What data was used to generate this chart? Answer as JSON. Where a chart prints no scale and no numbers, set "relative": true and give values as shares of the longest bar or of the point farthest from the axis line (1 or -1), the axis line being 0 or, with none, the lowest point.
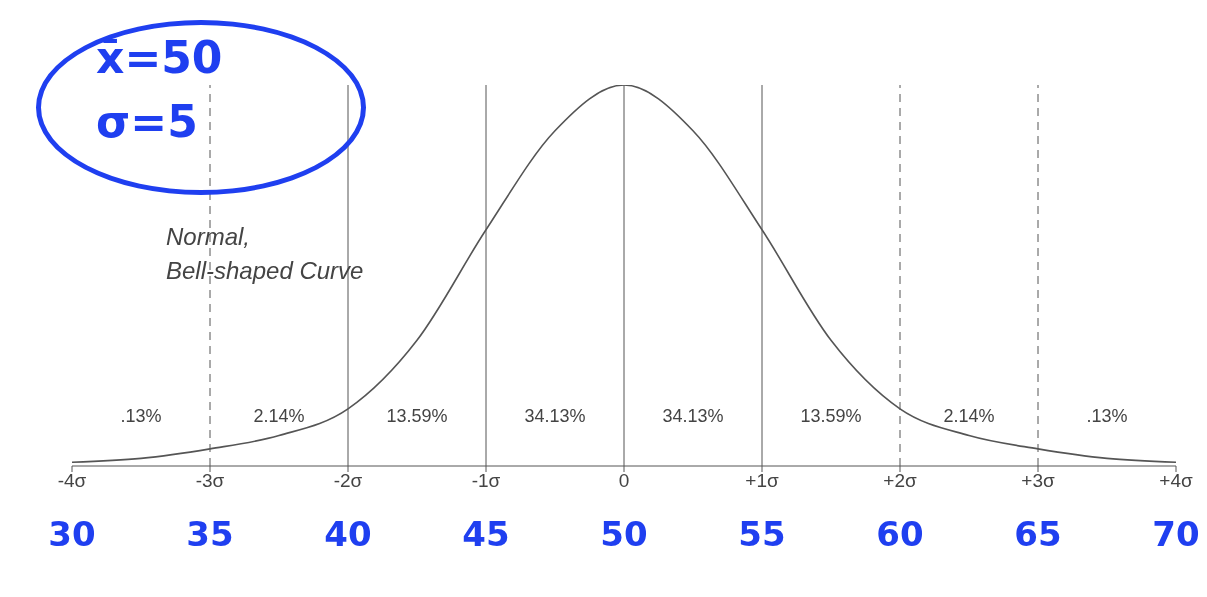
{
  "chart_data": {
    "type": "line",
    "relative": true,
    "x": [
      -4,
      -3.5,
      -3,
      -2.5,
      -2,
      -1.5,
      -1,
      -0.5,
      0,
      0.5,
      1,
      1.5,
      2,
      2.5,
      3,
      3.5,
      4
    ],
    "series": [
      {
        "color": "#555555",
        "values": [
          0.01,
          0.02,
          0.045,
          0.08,
          0.15,
          0.33,
          0.62,
          0.88,
          1,
          0.88,
          0.62,
          0.33,
          0.15,
          0.08,
          0.045,
          0.02,
          0.01
        ]
      }
    ],
    "xlim": [
      -4,
      4
    ],
    "xticks": [
      {
        "value": -4,
        "label": "-4σ"
      },
      {
        "value": -3,
        "label": "-3σ"
      },
      {
        "value": -2,
        "label": "-2σ"
      },
      {
        "value": -1,
        "label": "-1σ"
      },
      0,
      {
        "value": 1,
        "label": "+1σ"
      },
      {
        "value": 2,
        "label": "+2σ"
      },
      {
        "value": 3,
        "label": "+3σ"
      },
      {
        "value": 4,
        "label": "+4σ"
      }
    ],
    "x2lim": [
      30,
      70
    ],
    "x2ticks": [
      30,
      35,
      40,
      45,
      50,
      55,
      60,
      65,
      70
    ],
    "ref_lines": [
      {
        "axis": "x",
        "value": -3,
        "line_style": "dashed"
      },
      {
        "axis": "x",
        "value": -2,
        "line_style": "solid"
      },
      {
        "axis": "x",
        "value": -1,
        "line_style": "solid"
      },
      {
        "axis": "x",
        "value": 0,
        "line_style": "solid"
      },
      {
        "axis": "x",
        "value": 1,
        "line_style": "solid"
      },
      {
        "axis": "x",
        "value": 2,
        "line_style": "dashed"
      },
      {
        "axis": "x",
        "value": 3,
        "line_style": "dashed"
      }
    ],
    "annotations": [
      "x̄=50",
      "σ=5",
      "Normal,\nBell-shaped Curve",
      ".13%",
      "2.14%",
      "13.59%",
      "34.13%",
      "34.13%",
      "13.59%",
      "2.14%",
      ".13%"
    ],
    "marker": "none",
    "line_style": "solid",
    "grid": false,
    "legend": false
  }
}
